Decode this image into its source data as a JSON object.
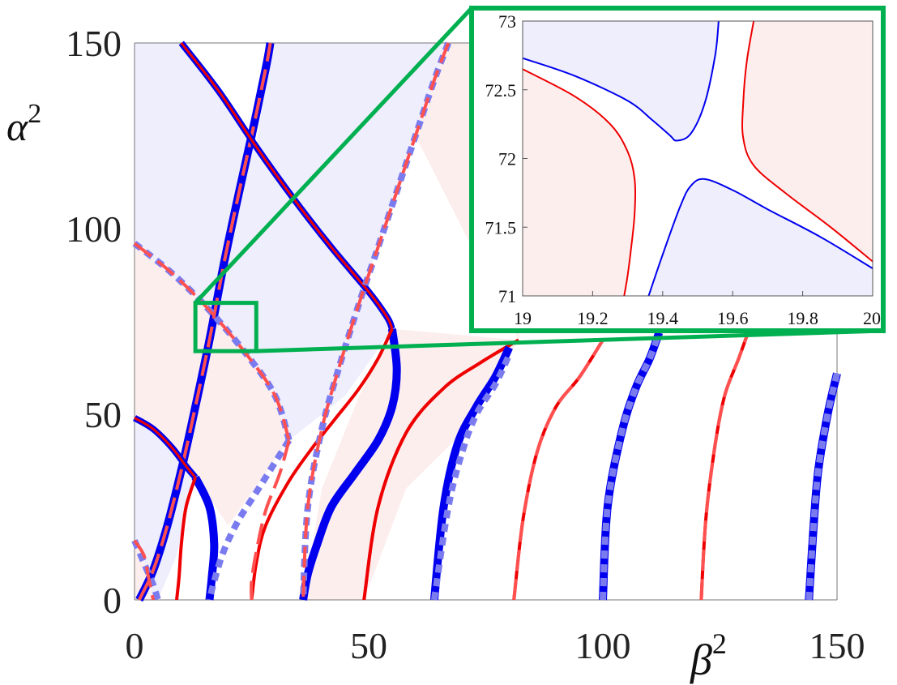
{
  "colors": {
    "blue": "#0000ee",
    "light_blue": "#7b7bf0",
    "red": "#ee0000",
    "light_red": "#ff5050",
    "region_blue": "#eeeefc",
    "region_red": "#fdeeee",
    "highlight": "#00b050",
    "axis": "#777777"
  },
  "chart_data": [
    {
      "type": "line",
      "title": "",
      "xlabel": "β",
      "xlabel_superscript": "2",
      "ylabel": "α",
      "ylabel_superscript": "2",
      "xlim": [
        0,
        150
      ],
      "ylim": [
        0,
        150
      ],
      "xticks": [
        "0",
        "50",
        "100",
        "150"
      ],
      "yticks": [
        "0",
        "50",
        "100",
        "150"
      ],
      "series": [
        {
          "style": "blue-solid-thick",
          "x": [
            1,
            4,
            7,
            10,
            13,
            16,
            19,
            22,
            25,
            28,
            29
          ],
          "y": [
            0,
            8,
            20,
            35,
            52,
            70,
            90,
            108,
            125,
            143,
            150
          ]
        },
        {
          "style": "red-dashed",
          "x": [
            1,
            4,
            7,
            10,
            13,
            16,
            19,
            22,
            25,
            28,
            29
          ],
          "y": [
            0,
            8,
            20,
            35,
            52,
            70,
            90,
            108,
            125,
            143,
            150
          ]
        },
        {
          "style": "blue-solid",
          "x": [
            10,
            18,
            26,
            34,
            42,
            50,
            54,
            55
          ],
          "y": [
            150,
            137,
            122,
            108,
            95,
            83,
            76,
            73
          ]
        },
        {
          "style": "red-solid-thin",
          "x": [
            10,
            18,
            26,
            34,
            42,
            50,
            54,
            55
          ],
          "y": [
            150,
            137,
            122,
            108,
            95,
            83,
            76,
            73
          ]
        },
        {
          "style": "blue-solid-thick",
          "x": [
            55,
            56,
            55,
            52,
            47,
            42,
            39,
            37,
            36
          ],
          "y": [
            73,
            62,
            52,
            43,
            34,
            25,
            15,
            7,
            0
          ]
        },
        {
          "style": "red-solid",
          "x": [
            55,
            52,
            48,
            43,
            38,
            33,
            28,
            26,
            25
          ],
          "y": [
            73,
            65,
            57,
            49,
            41,
            32,
            20,
            10,
            0
          ]
        },
        {
          "style": "blue-solid",
          "x": [
            0,
            4,
            8,
            11,
            13
          ],
          "y": [
            49,
            46,
            41,
            36,
            33
          ]
        },
        {
          "style": "red-solid-thin",
          "x": [
            0,
            4,
            8,
            11,
            13
          ],
          "y": [
            49,
            46,
            41,
            36,
            33
          ]
        },
        {
          "style": "blue-solid-thick",
          "x": [
            13,
            16,
            17,
            16.5,
            16
          ],
          "y": [
            33,
            25,
            15,
            6,
            0
          ]
        },
        {
          "style": "red-solid",
          "x": [
            13,
            11,
            10,
            9.5,
            9
          ],
          "y": [
            33,
            25,
            15,
            6,
            0
          ]
        },
        {
          "style": "light-blue-dashed",
          "x": [
            0,
            8,
            16,
            24,
            30,
            33
          ],
          "y": [
            96,
            88,
            78,
            66,
            55,
            43
          ]
        },
        {
          "style": "red-dashed",
          "x": [
            0,
            8,
            16,
            24,
            30,
            33
          ],
          "y": [
            96,
            88,
            78,
            66,
            55,
            43
          ]
        },
        {
          "style": "light-blue-dashed",
          "x": [
            33,
            30,
            26,
            22,
            19,
            17,
            16
          ],
          "y": [
            43,
            37,
            29,
            21,
            13,
            5,
            0
          ]
        },
        {
          "style": "red-dashed",
          "x": [
            33,
            31,
            28,
            26,
            25,
            25
          ],
          "y": [
            43,
            34,
            24,
            13,
            5,
            0
          ]
        },
        {
          "style": "light-blue-dashed",
          "x": [
            0,
            2,
            4,
            5
          ],
          "y": [
            16,
            10,
            4,
            0
          ]
        },
        {
          "style": "red-dashed",
          "x": [
            0,
            2,
            3,
            4
          ],
          "y": [
            16,
            12,
            6,
            0
          ]
        },
        {
          "style": "light-blue-dashed",
          "x": [
            67,
            64,
            60,
            56,
            52,
            48,
            44,
            40,
            37,
            36
          ],
          "y": [
            150,
            140,
            125,
            110,
            95,
            80,
            64,
            46,
            25,
            0
          ]
        },
        {
          "style": "red-dashed",
          "x": [
            67,
            64,
            60,
            56,
            52,
            48,
            44,
            40,
            37,
            36
          ],
          "y": [
            150,
            140,
            125,
            110,
            95,
            80,
            64,
            46,
            25,
            0
          ]
        },
        {
          "style": "red-dashed",
          "x": [
            49,
            52,
            58,
            66,
            74,
            82
          ],
          "y": [
            0,
            25,
            45,
            57,
            64,
            70
          ]
        },
        {
          "style": "red-solid",
          "x": [
            49,
            52,
            58,
            66,
            74,
            82
          ],
          "y": [
            0,
            25,
            45,
            57,
            64,
            70
          ]
        },
        {
          "style": "blue-solid-thick",
          "x": [
            64,
            66,
            69,
            73,
            77,
            80
          ],
          "y": [
            0,
            25,
            42,
            52,
            60,
            68
          ]
        },
        {
          "style": "light-blue-dashed",
          "x": [
            64,
            67,
            70,
            73,
            77,
            80
          ],
          "y": [
            0,
            25,
            40,
            50,
            58,
            66
          ]
        },
        {
          "style": "red-solid",
          "x": [
            81,
            83,
            86,
            90,
            95,
            100
          ],
          "y": [
            0,
            22,
            40,
            52,
            60,
            70
          ]
        },
        {
          "style": "red-dashed",
          "x": [
            81,
            83,
            86,
            90,
            95,
            100
          ],
          "y": [
            0,
            22,
            40,
            52,
            60,
            70
          ]
        },
        {
          "style": "blue-solid-thick",
          "x": [
            100,
            101,
            104,
            107,
            110,
            112
          ],
          "y": [
            0,
            25,
            45,
            57,
            65,
            72
          ]
        },
        {
          "style": "light-blue-dashed",
          "x": [
            100,
            101,
            104,
            107,
            110,
            112
          ],
          "y": [
            0,
            25,
            45,
            57,
            65,
            72
          ]
        },
        {
          "style": "red-solid",
          "x": [
            121,
            122,
            124,
            126,
            129,
            131
          ],
          "y": [
            0,
            22,
            42,
            55,
            65,
            72
          ]
        },
        {
          "style": "red-dashed",
          "x": [
            121,
            122,
            124,
            126,
            129,
            131
          ],
          "y": [
            0,
            22,
            42,
            55,
            65,
            72
          ]
        },
        {
          "style": "blue-solid-thick",
          "x": [
            144,
            145,
            146,
            148,
            150
          ],
          "y": [
            0,
            20,
            35,
            50,
            61
          ]
        },
        {
          "style": "light-blue-dashed",
          "x": [
            144,
            145,
            146,
            148,
            150
          ],
          "y": [
            0,
            20,
            35,
            50,
            61
          ]
        }
      ],
      "highlight_box": {
        "x": [
          13,
          26
        ],
        "y": [
          67,
          80
        ]
      }
    },
    {
      "type": "line",
      "title": "",
      "xlim": [
        19,
        20
      ],
      "ylim": [
        71,
        73
      ],
      "xticks": [
        "19",
        "19.2",
        "19.4",
        "19.6",
        "19.8",
        "20"
      ],
      "yticks": [
        "71",
        "71.5",
        "72",
        "72.5",
        "73"
      ],
      "series": [
        {
          "style": "blue",
          "x": [
            19,
            19.15,
            19.3,
            19.37,
            19.42,
            19.44,
            19.48,
            19.52,
            19.55,
            19.56
          ],
          "y": [
            72.73,
            72.6,
            72.42,
            72.28,
            72.17,
            72.13,
            72.18,
            72.4,
            72.75,
            73
          ]
        },
        {
          "style": "red",
          "x": [
            19,
            19.15,
            19.25,
            19.3,
            19.32,
            19.32,
            19.31,
            19.3,
            19.29
          ],
          "y": [
            72.65,
            72.45,
            72.25,
            72.05,
            71.85,
            71.6,
            71.35,
            71.15,
            71
          ]
        },
        {
          "style": "blue",
          "x": [
            19.36,
            19.4,
            19.45,
            19.48,
            19.52,
            19.6,
            19.7,
            19.85,
            20
          ],
          "y": [
            71,
            71.3,
            71.65,
            71.8,
            71.85,
            71.77,
            71.63,
            71.43,
            71.2
          ]
        },
        {
          "style": "red",
          "x": [
            19.66,
            19.64,
            19.63,
            19.63,
            19.66,
            19.75,
            19.88,
            20
          ],
          "y": [
            73,
            72.7,
            72.4,
            72.15,
            71.95,
            71.75,
            71.5,
            71.25
          ]
        }
      ]
    }
  ]
}
